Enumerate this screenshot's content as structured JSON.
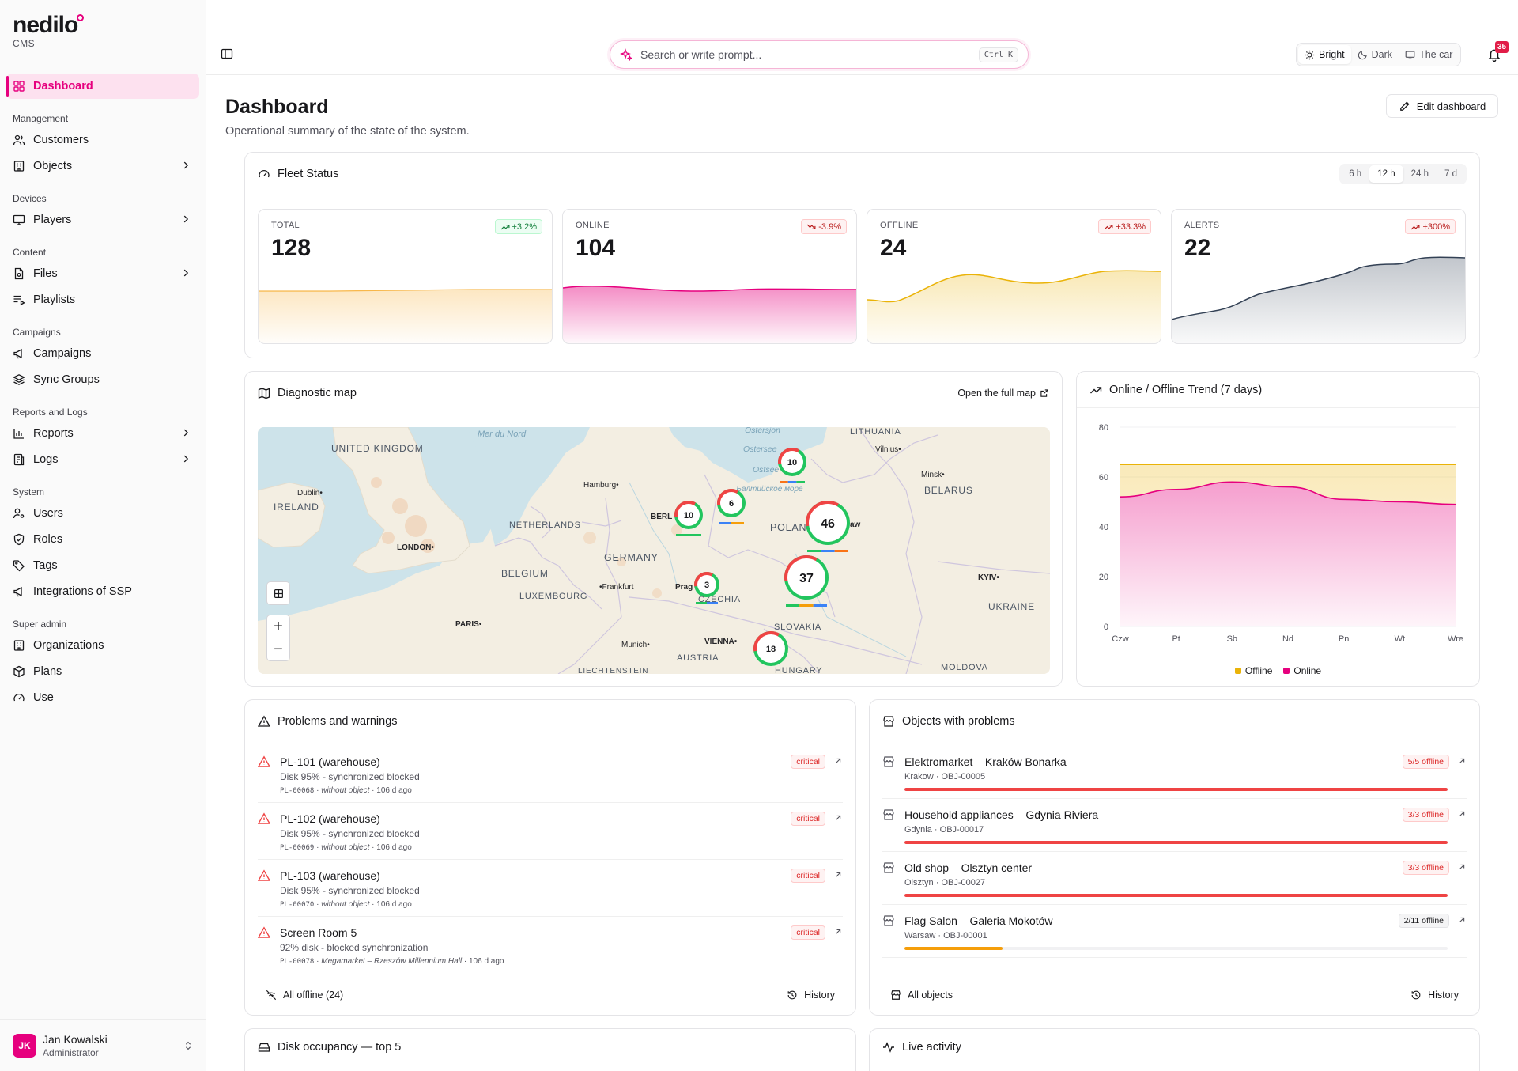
{
  "brand": {
    "name": "nedilo",
    "sub": "CMS"
  },
  "sidebar": {
    "active": {
      "label": "Dashboard"
    },
    "groups": [
      {
        "label": "Management",
        "items": [
          {
            "label": "Customers"
          },
          {
            "label": "Objects"
          }
        ]
      },
      {
        "label": "Devices",
        "items": [
          {
            "label": "Players"
          }
        ]
      },
      {
        "label": "Content",
        "items": [
          {
            "label": "Files"
          },
          {
            "label": "Playlists"
          }
        ]
      },
      {
        "label": "Campaigns",
        "items": [
          {
            "label": "Campaigns"
          },
          {
            "label": "Sync Groups"
          }
        ]
      },
      {
        "label": "Reports and Logs",
        "items": [
          {
            "label": "Reports"
          },
          {
            "label": "Logs"
          }
        ]
      },
      {
        "label": "System",
        "items": [
          {
            "label": "Users"
          },
          {
            "label": "Roles"
          },
          {
            "label": "Tags"
          },
          {
            "label": "Integrations of SSP"
          }
        ]
      },
      {
        "label": "Super admin",
        "items": [
          {
            "label": "Organizations"
          },
          {
            "label": "Plans"
          },
          {
            "label": "Use"
          }
        ]
      }
    ],
    "user": {
      "initials": "JK",
      "name": "Jan Kowalski",
      "role": "Administrator"
    }
  },
  "header": {
    "search_placeholder": "Search or write prompt...",
    "shortcut": "Ctrl K",
    "themes": [
      "Bright",
      "Dark",
      "The car"
    ],
    "active_theme": "Bright",
    "notifications": "35"
  },
  "page": {
    "title": "Dashboard",
    "subtitle": "Operational summary of the state of the system.",
    "edit_label": "Edit dashboard"
  },
  "fleet": {
    "title": "Fleet Status",
    "ranges": [
      "6 h",
      "12 h",
      "24 h",
      "7 d"
    ],
    "active_range": "12 h",
    "stats": [
      {
        "label": "TOTAL",
        "value": "128",
        "delta": "+3.2%",
        "color": "#f59e0b"
      },
      {
        "label": "ONLINE",
        "value": "104",
        "delta": "-3.9%",
        "color": "#e6007e"
      },
      {
        "label": "OFFLINE",
        "value": "24",
        "delta": "+33.3%",
        "color": "#eab308"
      },
      {
        "label": "ALERTS",
        "value": "22",
        "delta": "+300%",
        "color": "#334155"
      }
    ]
  },
  "map": {
    "title": "Diagnostic map",
    "link": "Open the full map",
    "labels": {
      "uk": "UNITED KINGDOM",
      "ireland": "IRELAND",
      "dublin": "Dublin",
      "london": "LONDON",
      "nl": "NETHERLANDS",
      "be": "BELGIUM",
      "lux": "LUXEMBOURG",
      "paris": "PARIS",
      "de": "GERMANY",
      "hamburg": "Hamburg",
      "berlin": "BERL",
      "frankfurt": "Frankfurt",
      "prague": "Prag",
      "czechia": "CZECHIA",
      "munich": "Munich",
      "vienna": "VIENNA",
      "austria": "AUSTRIA",
      "liecht": "LIECHTENSTEIN",
      "slovakia": "SLOVAKIA",
      "hungary": "HUNGARY",
      "poland": "POLAN",
      "warsaw": "aw",
      "lithuania": "LITHUANIA",
      "vilnius": "Vilnius",
      "minsk": "Minsk",
      "belarus": "BELARUS",
      "kyiv": "KYIV",
      "ukraine": "UKRAINE",
      "moldova": "MOLDOVA",
      "sea_north": "Mer du Nord",
      "sea_ost": "Ostersjon",
      "sea_ost2": "Ostersee",
      "sea_ost3": "Ostsee",
      "sea_balt": "Балтийское море"
    },
    "clusters": [
      {
        "n": "10",
        "name": "gdansk"
      },
      {
        "n": "6",
        "name": "szczecin"
      },
      {
        "n": "10",
        "name": "berlin"
      },
      {
        "n": "46",
        "name": "warsaw"
      },
      {
        "n": "37",
        "name": "lodz"
      },
      {
        "n": "3",
        "name": "prague"
      },
      {
        "n": "18",
        "name": "south"
      }
    ]
  },
  "trend": {
    "title": "Online / Offline Trend (7 days)",
    "legend": [
      "Offline",
      "Online"
    ]
  },
  "chart_data": {
    "type": "area",
    "title": "Online / Offline Trend (7 days)",
    "categories": [
      "Czw",
      "Pt",
      "Sb",
      "Nd",
      "Pn",
      "Wt",
      "Wre"
    ],
    "yticks": [
      "0",
      "20",
      "40",
      "60",
      "80"
    ],
    "ylim": [
      0,
      80
    ],
    "series": [
      {
        "name": "Offline",
        "color": "#eab308",
        "values": [
          65,
          65,
          65,
          65,
          65,
          65,
          65
        ]
      },
      {
        "name": "Online",
        "color": "#e6007e",
        "values": [
          52,
          55,
          58,
          56,
          51,
          50,
          49
        ]
      }
    ],
    "grid": true,
    "legend": "bottom"
  },
  "problems": {
    "title": "Problems and warnings",
    "items": [
      {
        "title": "PL-101 (warehouse)",
        "desc": "Disk 95% - synchronized blocked",
        "code": "PL-00068",
        "object": "without object",
        "ago": "106 d ago",
        "badge": "critical"
      },
      {
        "title": "PL-102 (warehouse)",
        "desc": "Disk 95% - synchronized blocked",
        "code": "PL-00069",
        "object": "without object",
        "ago": "106 d ago",
        "badge": "critical"
      },
      {
        "title": "PL-103 (warehouse)",
        "desc": "Disk 95% - synchronized blocked",
        "code": "PL-00070",
        "object": "without object",
        "ago": "106 d ago",
        "badge": "critical"
      },
      {
        "title": "Screen Room 5",
        "desc": "92% disk - blocked synchronization",
        "code": "PL-00078",
        "object": "Megamarket – Rzeszów Millennium Hall",
        "ago": "106 d ago",
        "badge": "critical"
      }
    ],
    "footer_left": "All offline (24)",
    "footer_right": "History"
  },
  "objects": {
    "title": "Objects with problems",
    "items": [
      {
        "title": "Elektromarket – Kraków Bonarka",
        "city": "Krakow",
        "code": "OBJ-00005",
        "badge": "5/5 offline",
        "level": 1.0,
        "color": "#ef4444",
        "tone": "red"
      },
      {
        "title": "Household appliances – Gdynia Riviera",
        "city": "Gdynia",
        "code": "OBJ-00017",
        "badge": "3/3 offline",
        "level": 1.0,
        "color": "#ef4444",
        "tone": "red"
      },
      {
        "title": "Old shop – Olsztyn center",
        "city": "Olsztyn",
        "code": "OBJ-00027",
        "badge": "3/3 offline",
        "level": 1.0,
        "color": "#ef4444",
        "tone": "red"
      },
      {
        "title": "Flag Salon – Galeria Mokotów",
        "city": "Warsaw",
        "code": "OBJ-00001",
        "badge": "2/11 offline",
        "level": 0.18,
        "color": "#f59e0b",
        "tone": "gray"
      }
    ],
    "footer_left": "All objects",
    "footer_right": "History"
  },
  "bottom": {
    "disk_title": "Disk occupancy — top 5",
    "live_title": "Live activity"
  }
}
